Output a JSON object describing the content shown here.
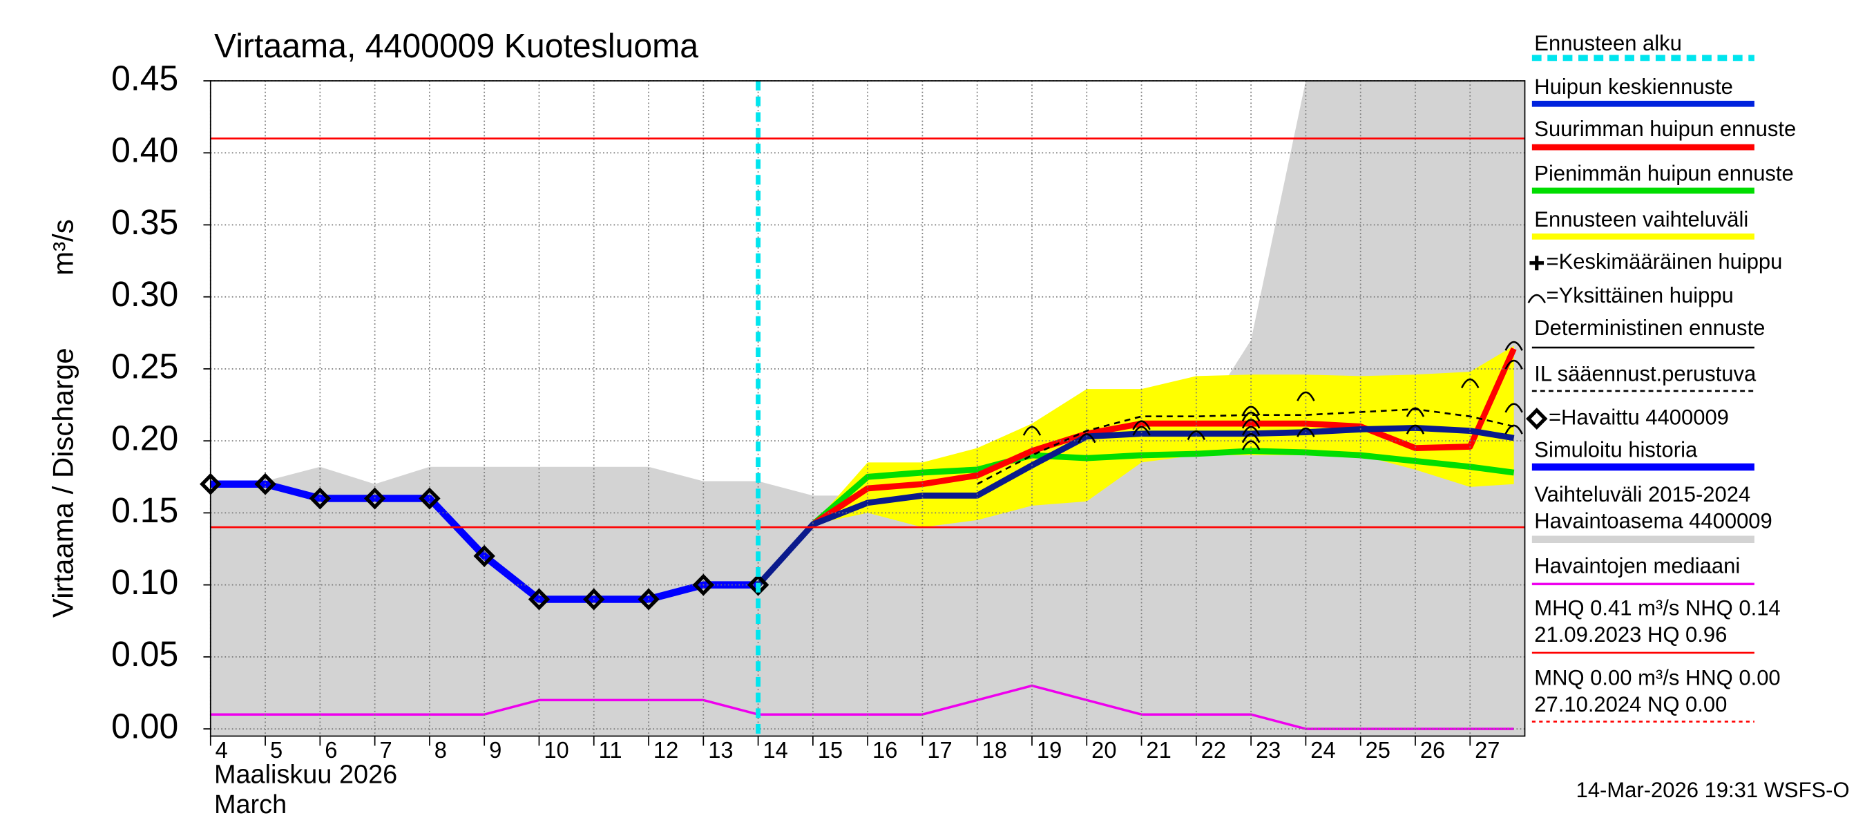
{
  "chart_data": {
    "type": "line",
    "title": "Virtaama, 4400009 Kuotesluoma",
    "ylabel": "Virtaama / Discharge",
    "yunit": "m³/s",
    "xlabel": [
      "Maaliskuu 2026",
      "March"
    ],
    "footer": "14-Mar-2026 19:31 WSFS-O",
    "xlim": [
      4,
      28
    ],
    "xticks": [
      4,
      5,
      6,
      7,
      8,
      9,
      10,
      11,
      12,
      13,
      14,
      15,
      16,
      17,
      18,
      19,
      20,
      21,
      22,
      23,
      24,
      25,
      26,
      27
    ],
    "ylim": [
      -0.005,
      0.45
    ],
    "yticks": [
      {
        "value": 0,
        "label": "0.00"
      },
      {
        "value": 0.05,
        "label": "0.05"
      },
      {
        "value": 0.1,
        "label": "0.10"
      },
      {
        "value": 0.15,
        "label": "0.15"
      },
      {
        "value": 0.2,
        "label": "0.20"
      },
      {
        "value": 0.25,
        "label": "0.25"
      },
      {
        "value": 0.3,
        "label": "0.30"
      },
      {
        "value": 0.35,
        "label": "0.35"
      },
      {
        "value": 0.4,
        "label": "0.40"
      },
      {
        "value": 0.45,
        "label": "0.45"
      }
    ],
    "grid": true,
    "forecast_start": {
      "label": "Ennusteen alku",
      "x": 14,
      "color": "#00e5ee"
    },
    "historical_range": {
      "name": [
        "Vaihteluväli 2015-2024",
        "Havaintoasema 4400009"
      ],
      "color": "#d3d3d3",
      "x": [
        4,
        5,
        6,
        7,
        8,
        9,
        10,
        11,
        12,
        13,
        14,
        15,
        16,
        17,
        18,
        19,
        20,
        21,
        22,
        23,
        24,
        28
      ],
      "upper": [
        0.17,
        0.172,
        0.182,
        0.17,
        0.182,
        0.182,
        0.182,
        0.182,
        0.182,
        0.172,
        0.172,
        0.162,
        0.162,
        0.17,
        0.18,
        0.19,
        0.2,
        0.205,
        0.21,
        0.27,
        0.45,
        0.45
      ]
    },
    "forecast_range": {
      "name": "Ennusteen vaihteluväli",
      "color": "#ffff00",
      "x": [
        15,
        16,
        17,
        18,
        19,
        20,
        21,
        22,
        23,
        24,
        25,
        26,
        27,
        27.8
      ],
      "upper": [
        0.142,
        0.185,
        0.185,
        0.195,
        0.212,
        0.236,
        0.236,
        0.245,
        0.246,
        0.246,
        0.245,
        0.246,
        0.248,
        0.266
      ],
      "lower": [
        0.142,
        0.15,
        0.14,
        0.145,
        0.155,
        0.158,
        0.185,
        0.19,
        0.19,
        0.19,
        0.19,
        0.18,
        0.168,
        0.17
      ]
    },
    "series": [
      {
        "name": "Huipun keskiennuste",
        "color": "#0a1a8c",
        "width": 5,
        "x": [
          14,
          15,
          16,
          17,
          18,
          19,
          20,
          21,
          22,
          23,
          24,
          25,
          26,
          27,
          27.8
        ],
        "values": [
          0.1,
          0.142,
          0.157,
          0.162,
          0.162,
          0.183,
          0.203,
          0.205,
          0.205,
          0.205,
          0.206,
          0.208,
          0.209,
          0.207,
          0.202
        ]
      },
      {
        "name": "Suurimman huipun ennuste",
        "color": "#ff0000",
        "width": 5,
        "x": [
          15,
          16,
          17,
          18,
          19,
          20,
          21,
          22,
          23,
          24,
          25,
          26,
          27,
          27.8
        ],
        "values": [
          0.142,
          0.167,
          0.17,
          0.176,
          0.193,
          0.205,
          0.212,
          0.212,
          0.212,
          0.212,
          0.21,
          0.195,
          0.196,
          0.264
        ]
      },
      {
        "name": "Pienimmän huipun ennuste",
        "color": "#00dd00",
        "width": 5,
        "x": [
          15,
          16,
          17,
          18,
          19,
          20,
          21,
          22,
          23,
          24,
          25,
          26,
          27,
          27.8
        ],
        "values": [
          0.142,
          0.175,
          0.178,
          0.18,
          0.19,
          0.188,
          0.19,
          0.191,
          0.193,
          0.192,
          0.19,
          0.186,
          0.182,
          0.178
        ]
      },
      {
        "name": "IL sääennust.perustuva",
        "color": "#000000",
        "width": 1.5,
        "dashed": true,
        "x": [
          18,
          19,
          20,
          21,
          22,
          23,
          24,
          25,
          26,
          27,
          27.8
        ],
        "values": [
          0.17,
          0.19,
          0.207,
          0.217,
          0.217,
          0.218,
          0.218,
          0.22,
          0.222,
          0.217,
          0.21
        ]
      },
      {
        "name": "Simuloitu historia",
        "color": "#0000ff",
        "width": 6,
        "x": [
          4,
          5,
          6,
          7,
          8,
          9,
          10,
          11,
          12,
          13,
          14
        ],
        "values": [
          0.17,
          0.17,
          0.16,
          0.16,
          0.16,
          0.12,
          0.09,
          0.09,
          0.09,
          0.1,
          0.1
        ]
      },
      {
        "name": "Havaintojen mediaani",
        "color": "#ee00ee",
        "width": 2,
        "x": [
          4,
          9,
          10,
          13,
          14,
          17,
          19,
          21,
          23,
          24,
          27.8
        ],
        "values": [
          0.01,
          0.01,
          0.02,
          0.02,
          0.01,
          0.01,
          0.03,
          0.01,
          0.01,
          0,
          0
        ]
      }
    ],
    "observed": {
      "name": "=Havaittu 4400009",
      "x": [
        4,
        5,
        6,
        7,
        8,
        9,
        10,
        11,
        12,
        13,
        14
      ],
      "values": [
        0.17,
        0.17,
        0.16,
        0.16,
        0.16,
        0.12,
        0.09,
        0.09,
        0.09,
        0.1,
        0.1
      ]
    },
    "peaks": {
      "name": "=Yksittäinen huippu",
      "x": [
        19,
        20,
        21,
        21,
        22,
        23,
        23,
        23,
        23,
        23,
        23,
        24,
        24,
        26,
        26,
        27,
        27.8,
        27.8,
        27.8,
        27.8
      ],
      "values": [
        0.208,
        0.203,
        0.208,
        0.212,
        0.205,
        0.222,
        0.218,
        0.213,
        0.208,
        0.203,
        0.198,
        0.232,
        0.207,
        0.221,
        0.209,
        0.241,
        0.267,
        0.254,
        0.224,
        0.209
      ]
    },
    "mean_peak": {
      "name": "=Keskimääräinen huippu"
    },
    "deterministic": {
      "name": "Deterministinen ennuste",
      "color": "#000000"
    },
    "reference_lines": [
      {
        "value": 0.41,
        "color": "#ff0000",
        "text": [
          "MHQ 0.41 m³/s NHQ 0.14",
          "21.09.2023 HQ 0.96"
        ]
      },
      {
        "value": 0.14,
        "color": "#ff0000",
        "text": [
          "MNQ 0.00 m³/s HNQ 0.00",
          "27.10.2024 NQ 0.00"
        ]
      }
    ]
  }
}
